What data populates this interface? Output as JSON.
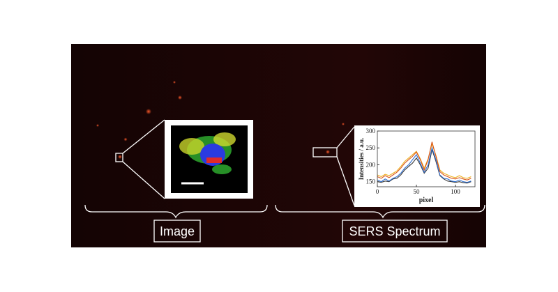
{
  "labels": {
    "left": "Image",
    "right": "SERS Spectrum"
  },
  "chart_data": {
    "type": "line",
    "xlabel": "pixel",
    "ylabel": "Intensities / a.u.",
    "x": [
      0,
      5,
      10,
      15,
      20,
      25,
      30,
      35,
      40,
      45,
      50,
      55,
      60,
      65,
      70,
      75,
      80,
      85,
      90,
      95,
      100,
      105,
      110,
      115,
      120
    ],
    "xlim": [
      0,
      125
    ],
    "xticks": [
      0,
      50,
      100
    ],
    "ylim": [
      135,
      300
    ],
    "yticks": [
      150,
      200,
      250,
      300
    ],
    "series": [
      {
        "color": "#edb120",
        "values": [
          170,
          165,
          172,
          168,
          175,
          182,
          195,
          210,
          220,
          230,
          240,
          218,
          190,
          218,
          262,
          228,
          185,
          175,
          170,
          165,
          162,
          168,
          162,
          160,
          165
        ]
      },
      {
        "color": "#d95319",
        "values": [
          165,
          160,
          168,
          162,
          170,
          178,
          190,
          205,
          215,
          225,
          238,
          215,
          185,
          215,
          268,
          225,
          180,
          170,
          165,
          160,
          158,
          162,
          158,
          155,
          160
        ]
      },
      {
        "color": "#3a3a3a",
        "values": [
          150,
          148,
          152,
          150,
          158,
          160,
          170,
          185,
          195,
          205,
          220,
          200,
          175,
          190,
          245,
          210,
          168,
          158,
          152,
          150,
          148,
          150,
          147,
          146,
          150
        ]
      },
      {
        "color": "#2f6fd0",
        "values": [
          155,
          150,
          158,
          152,
          160,
          165,
          175,
          190,
          200,
          215,
          230,
          205,
          178,
          200,
          250,
          215,
          170,
          160,
          158,
          152,
          150,
          155,
          150,
          148,
          152
        ]
      }
    ]
  }
}
